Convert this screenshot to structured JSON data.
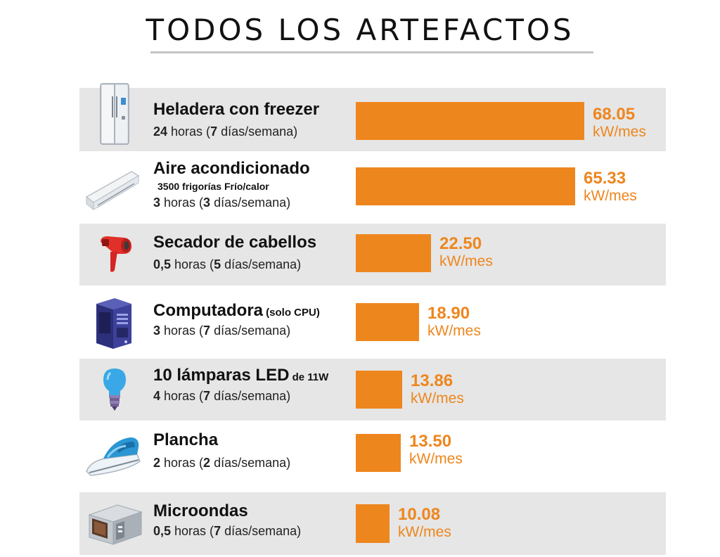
{
  "title": "TODOS LOS ARTEFACTOS",
  "chart_data": {
    "type": "bar",
    "orientation": "horizontal",
    "title": "TODOS LOS ARTEFACTOS",
    "unit": "kW/mes",
    "categories": [
      "Heladera con freezer",
      "Aire acondicionado",
      "Secador de cabellos",
      "Computadora",
      "10 lámparas LED",
      "Plancha",
      "Microondas"
    ],
    "values": [
      68.05,
      65.33,
      22.5,
      18.9,
      13.86,
      13.5,
      10.08
    ],
    "value_labels": [
      "68.05",
      "65.33",
      "22.50",
      "18.90",
      "13.86",
      "13.50",
      "10.08"
    ],
    "bar_color": "#ee861e",
    "row_shade_color": "#e6e6e6",
    "grid": false,
    "legend": "none"
  },
  "items": [
    {
      "name": "Heladera con freezer",
      "name_suffix": "",
      "extra": "",
      "hours": "24",
      "hours_text": " horas (",
      "days": "7",
      "days_text": " días/semana)",
      "value": "68.05",
      "unit": "kW/mes",
      "icon": "refrigerator-icon"
    },
    {
      "name": "Aire acondicionado",
      "name_suffix": "",
      "extra": "3500 frigorías Frío/calor",
      "hours": "3",
      "hours_text": " horas (",
      "days": "3",
      "days_text": " días/semana)",
      "value": "65.33",
      "unit": "kW/mes",
      "icon": "air-conditioner-icon"
    },
    {
      "name": "Secador de cabellos",
      "name_suffix": "",
      "extra": "",
      "hours": "0,5",
      "hours_text": " horas (",
      "days": "5",
      "days_text": " días/semana)",
      "value": "22.50",
      "unit": "kW/mes",
      "icon": "hair-dryer-icon"
    },
    {
      "name": "Computadora",
      "name_suffix": " (solo CPU)",
      "extra": "",
      "hours": "3",
      "hours_text": " horas (",
      "days": "7",
      "days_text": " días/semana)",
      "value": "18.90",
      "unit": "kW/mes",
      "icon": "computer-tower-icon"
    },
    {
      "name": "10 lámparas LED",
      "name_suffix": " de 11W",
      "extra": "",
      "hours": "4",
      "hours_text": " horas (",
      "days": "7",
      "days_text": " días/semana)",
      "value": "13.86",
      "unit": "kW/mes",
      "icon": "light-bulb-icon"
    },
    {
      "name": "Plancha",
      "name_suffix": "",
      "extra": "",
      "hours": "2",
      "hours_text": " horas (",
      "days": "2",
      "days_text": " días/semana)",
      "value": "13.50",
      "unit": "kW/mes",
      "icon": "iron-icon"
    },
    {
      "name": "Microondas",
      "name_suffix": "",
      "extra": "",
      "hours": "0,5",
      "hours_text": " horas (",
      "days": "7",
      "days_text": " días/semana)",
      "value": "10.08",
      "unit": "kW/mes",
      "icon": "microwave-icon"
    }
  ]
}
